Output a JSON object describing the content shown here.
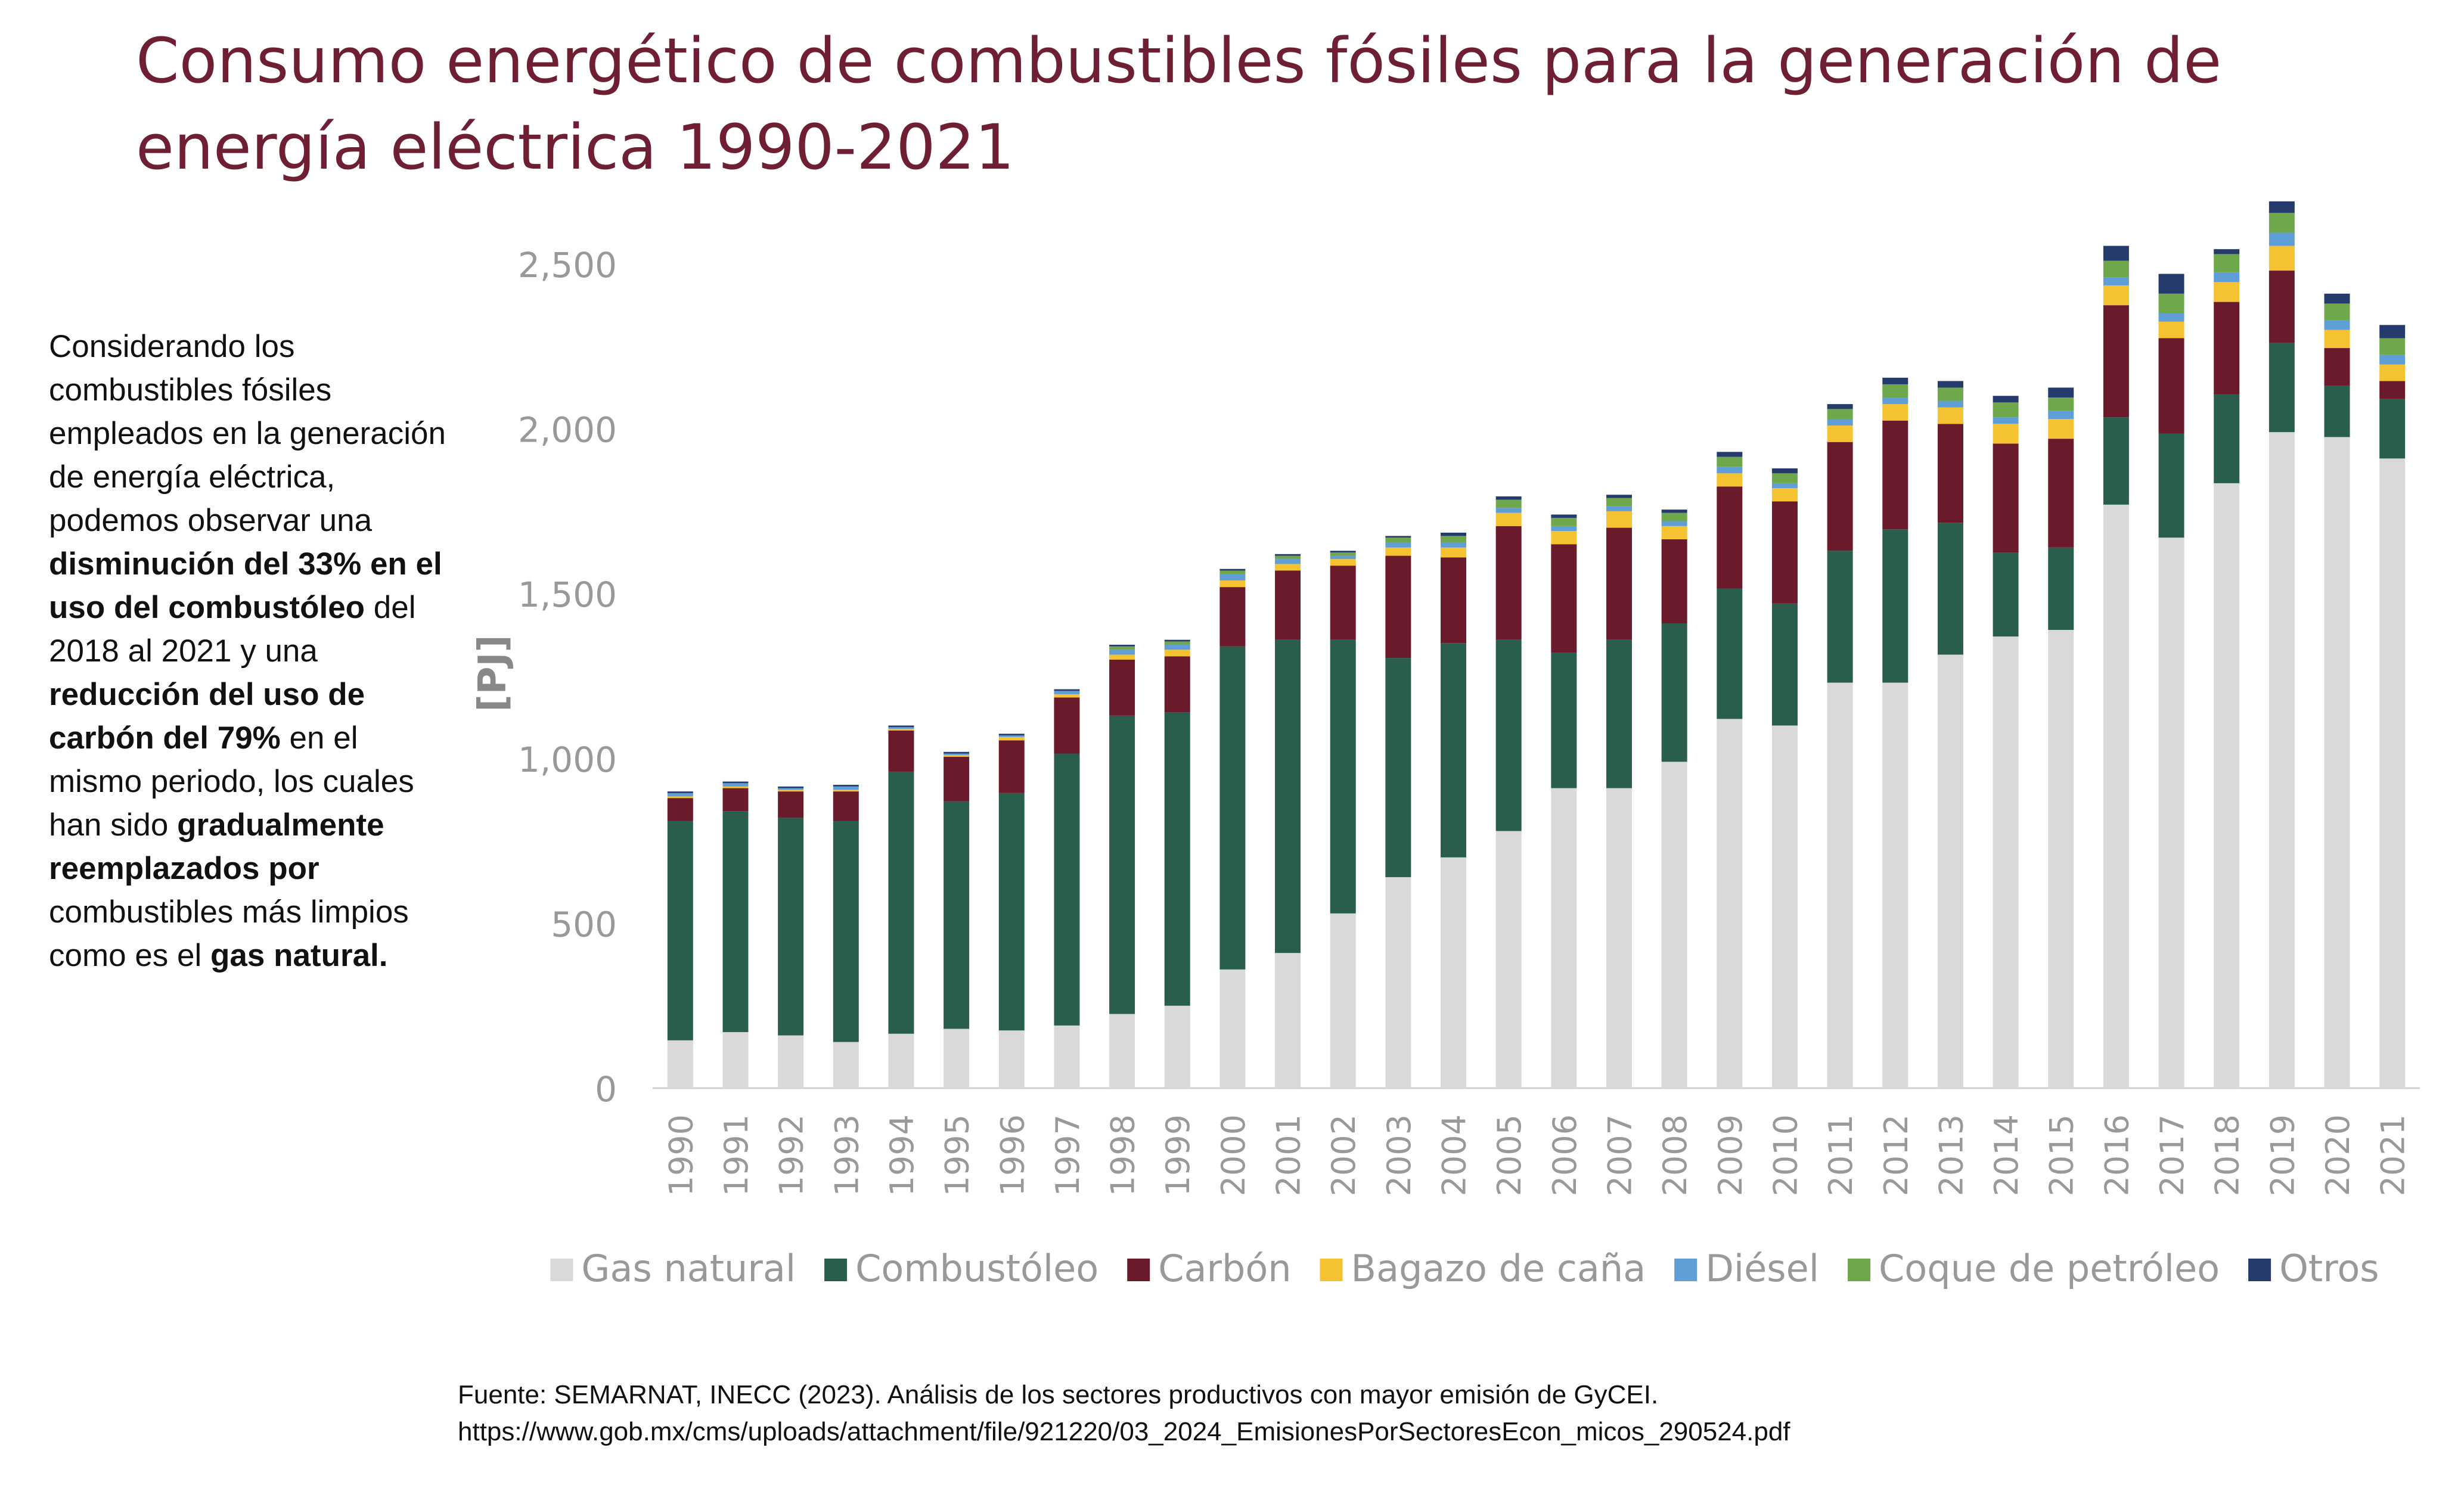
{
  "side_text": {
    "p1": "Considerando los combustibles fósiles empleados en la generación de energía eléctrica, podemos observar una ",
    "b1": "disminución del 33% en el uso del combustóleo",
    "p2": " del 2018 al 2021 y una ",
    "b2": "reducción del uso de carbón del 79%",
    "p3": " en el mismo periodo, los cuales han sido ",
    "b3": "gradualmente reemplazados por",
    "p4": " combustibles más limpios como es el ",
    "b4": "gas natural."
  },
  "source": {
    "line1": "Fuente: SEMARNAT, INECC (2023). Análisis de los sectores productivos con mayor emisión de GyCEI.",
    "line2": "https://www.gob.mx/cms/uploads/attachment/file/921220/03_2024_EmisionesPorSectoresEcon_micos_290524.pdf"
  },
  "chart_data": {
    "type": "bar",
    "stacked": true,
    "title": "Consumo energético de combustibles fósiles para la generación de energía eléctrica 1990-2021",
    "ylabel": "[PJ]",
    "xlabel": "",
    "ylim": [
      0,
      2700
    ],
    "yticks": [
      0,
      500,
      1000,
      1500,
      2000,
      2500
    ],
    "ytick_labels": [
      "0",
      "500",
      "1,000",
      "1,500",
      "2,000",
      "2,500"
    ],
    "grid": false,
    "legend_position": "bottom",
    "categories": [
      "1990",
      "1991",
      "1992",
      "1993",
      "1994",
      "1995",
      "1996",
      "1997",
      "1998",
      "1999",
      "2000",
      "2001",
      "2002",
      "2003",
      "2004",
      "2005",
      "2006",
      "2007",
      "2008",
      "2009",
      "2010",
      "2011",
      "2012",
      "2013",
      "2014",
      "2015",
      "2016",
      "2017",
      "2018",
      "2019",
      "2020",
      "2021"
    ],
    "series": [
      {
        "name": "Gas natural",
        "color": "#d9d9d9",
        "values": [
          145,
          170,
          160,
          140,
          165,
          180,
          175,
          190,
          225,
          250,
          360,
          410,
          530,
          640,
          700,
          780,
          910,
          910,
          990,
          1120,
          1100,
          1230,
          1230,
          1315,
          1370,
          1390,
          1770,
          1670,
          1835,
          1990,
          1975,
          1910
        ]
      },
      {
        "name": "Combustóleo",
        "color": "#2a5e4c",
        "values": [
          665,
          670,
          660,
          670,
          795,
          690,
          720,
          825,
          905,
          890,
          980,
          950,
          830,
          665,
          650,
          580,
          410,
          450,
          420,
          395,
          370,
          400,
          465,
          400,
          255,
          250,
          265,
          315,
          270,
          270,
          155,
          180
        ]
      },
      {
        "name": "Carbón",
        "color": "#6b1a2c",
        "values": [
          70,
          70,
          80,
          90,
          125,
          135,
          160,
          170,
          170,
          170,
          180,
          210,
          225,
          310,
          260,
          345,
          330,
          340,
          255,
          310,
          310,
          330,
          330,
          300,
          330,
          330,
          340,
          290,
          280,
          220,
          115,
          55
        ]
      },
      {
        "name": "Bagazo de caña",
        "color": "#f5c231",
        "values": [
          5,
          5,
          5,
          5,
          5,
          5,
          10,
          10,
          15,
          20,
          20,
          20,
          20,
          25,
          30,
          40,
          40,
          50,
          40,
          40,
          40,
          50,
          50,
          50,
          60,
          60,
          60,
          50,
          60,
          75,
          55,
          50
        ]
      },
      {
        "name": "Diésel",
        "color": "#5f9ed6",
        "values": [
          10,
          10,
          5,
          10,
          5,
          5,
          5,
          10,
          15,
          15,
          20,
          15,
          10,
          15,
          15,
          15,
          15,
          15,
          15,
          20,
          15,
          20,
          20,
          20,
          20,
          25,
          25,
          25,
          30,
          40,
          30,
          30
        ]
      },
      {
        "name": "Coque de petróleo",
        "color": "#6ea84a",
        "values": [
          0,
          0,
          0,
          0,
          0,
          0,
          0,
          0,
          10,
          10,
          10,
          10,
          10,
          15,
          20,
          25,
          25,
          25,
          25,
          30,
          30,
          30,
          40,
          40,
          45,
          40,
          50,
          60,
          55,
          60,
          50,
          50
        ]
      },
      {
        "name": "Otros",
        "color": "#243b6b",
        "values": [
          5,
          5,
          5,
          5,
          5,
          5,
          5,
          5,
          5,
          5,
          5,
          5,
          5,
          5,
          10,
          10,
          10,
          10,
          10,
          15,
          15,
          15,
          20,
          20,
          20,
          30,
          45,
          60,
          15,
          35,
          30,
          40
        ]
      }
    ]
  }
}
